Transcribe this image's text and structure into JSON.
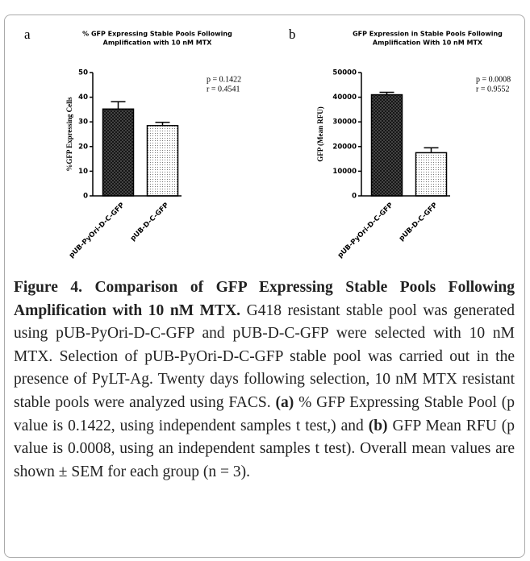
{
  "chart_data": [
    {
      "type": "bar",
      "panel": "a",
      "title": [
        "% GFP Expressing Stable Pools Following",
        "Amplification with 10 nM MTX"
      ],
      "y_label": "%GFP Expressing Cells",
      "categories": [
        "pUB-PyOri-D-C-GFP",
        "pUB-D-C-GFP"
      ],
      "values": [
        35.2,
        28.5
      ],
      "errors": [
        3,
        1.3
      ],
      "ylim": [
        0,
        50
      ],
      "yticks": [
        0,
        10,
        20,
        30,
        40,
        50
      ],
      "annotations": [
        "p = 0.1422",
        "r = 0.4541"
      ]
    },
    {
      "type": "bar",
      "panel": "b",
      "title": [
        "GFP Expression in Stable Pools Following",
        "Amplification With 10 nM MTX"
      ],
      "y_label": "GFP (Mean RFU)",
      "categories": [
        "pUB-PyOri-D-C-GFP",
        "pUB-D-C-GFP"
      ],
      "values": [
        41000,
        17500
      ],
      "errors": [
        1000,
        2000
      ],
      "ylim": [
        0,
        50000
      ],
      "yticks": [
        0,
        10000,
        20000,
        30000,
        40000,
        50000
      ],
      "annotations": [
        "p = 0.0008",
        "r = 0.9552"
      ]
    }
  ],
  "caption": {
    "heading": "Figure 4. Comparison of GFP Expressing Stable Pools Following Amplification with 10 nM MTX.",
    "body": [
      "G418 resistant stable pool was generated using pUB-PyOri-D-C-GFP and pUB-D-C-GFP were selected with 10 nM MTX. Selection of pUB-PyOri-D-C-GFP stable pool was carried out in the presence of PyLT-Ag. Twenty days following selection, 10 nM MTX resistant stable pools were analyzed using FACS.",
      "(a)",
      "% GFP Expressing Stable Pool (p value is 0.1422, using independent samples t test,) and",
      "(b)",
      "GFP Mean RFU (p value is 0.0008, using an independent samples t test). Overall mean values are shown ± SEM for each group (n = 3)."
    ]
  }
}
